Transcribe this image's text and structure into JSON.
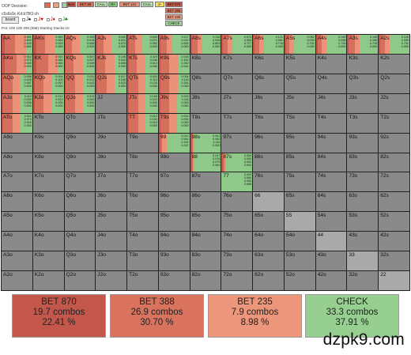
{
  "header": {
    "decision_label": "OOP Decision:",
    "board_cards": "c5s6s9c·Kd:b7BO:ch",
    "board_button_label": "board",
    "pot_info": "Pot: 100 100 200 (558) Starting Stacks:10",
    "suit_filters": [
      {
        "label": "J♠",
        "color": "#1a1a1a"
      },
      {
        "label": "J♥",
        "color": "#c00000"
      },
      {
        "label": "J♦",
        "color": "#c00000"
      },
      {
        "label": "J♣",
        "color": "#1a7a1a"
      }
    ],
    "legend_colors": [
      "#e06b4e",
      "#f0a080",
      "#9fd39a"
    ]
  },
  "action_tabs": [
    {
      "label": "Bext",
      "color": "#c8564a"
    },
    {
      "label": "BET 69",
      "color": "#d9735e"
    },
    {
      "label": "CALL",
      "color": "#b9e0b2"
    },
    {
      "label": "R+",
      "color": "#7fc878"
    },
    {
      "label": "BET 121",
      "color": "#e28f77"
    },
    {
      "label": "CALL",
      "color": "#b9e0b2"
    },
    {
      "label": "J+",
      "color": "#f2e060"
    },
    {
      "label": "BET 870",
      "color": "#c8564a"
    },
    {
      "label": "BET 388",
      "color": "#d9735e"
    },
    {
      "label": "BET 235",
      "color": "#eb9880"
    },
    {
      "label": "CHECK",
      "color": "#9fd39a"
    }
  ],
  "action_colors": {
    "bet_870": "#c4574b",
    "bet_388": "#d4705d",
    "bet_235": "#eb9278",
    "check": "#8fc98a"
  },
  "grid": {
    "ranks": [
      "A",
      "K",
      "Q",
      "J",
      "T",
      "9",
      "8",
      "7",
      "6",
      "5",
      "4",
      "3",
      "2"
    ],
    "strategies": {
      "AA": [
        0.1,
        0.35,
        0.35,
        0.2
      ],
      "AKs": [
        0.1,
        0.3,
        0.3,
        0.3
      ],
      "AQs": [
        0.05,
        0.2,
        0.25,
        0.5
      ],
      "AJs": [
        0.05,
        0.2,
        0.25,
        0.5
      ],
      "ATs": [
        0.05,
        0.2,
        0.25,
        0.5
      ],
      "A9s": [
        0.05,
        0.2,
        0.2,
        0.55
      ],
      "A8s": [
        0.05,
        0.2,
        0.15,
        0.6
      ],
      "A7s": [
        0.05,
        0.15,
        0.15,
        0.65
      ],
      "A6s": [
        0.05,
        0.15,
        0.15,
        0.65
      ],
      "A5s": [
        0.05,
        0.1,
        0.15,
        0.7
      ],
      "A4s": [
        0.05,
        0.15,
        0.15,
        0.65
      ],
      "A3s": [
        0.05,
        0.2,
        0.15,
        0.6
      ],
      "A2s": [
        0.05,
        0.15,
        0.15,
        0.65
      ],
      "AKo": [
        0.1,
        0.4,
        0.3,
        0.2
      ],
      "KK": [
        0.1,
        0.4,
        0.3,
        0.2
      ],
      "KQs": [
        0.05,
        0.25,
        0.3,
        0.4
      ],
      "KJs": [
        0.05,
        0.25,
        0.3,
        0.4
      ],
      "KTs": [
        0.05,
        0.25,
        0.3,
        0.4
      ],
      "K9s": [
        0.05,
        0.3,
        0.3,
        0.35
      ],
      "AQo": [
        0.05,
        0.3,
        0.25,
        0.4
      ],
      "KQo": [
        0.05,
        0.3,
        0.25,
        0.4
      ],
      "QQ": [
        0.05,
        0.3,
        0.25,
        0.4
      ],
      "QJs": [
        0.05,
        0.3,
        0.25,
        0.4
      ],
      "QTs": [
        0.05,
        0.3,
        0.25,
        0.4
      ],
      "Q9s": [
        0.05,
        0.3,
        0.3,
        0.35
      ],
      "AJo": [
        0.05,
        0.3,
        0.25,
        0.4
      ],
      "KJo": [
        0.05,
        0.3,
        0.25,
        0.4
      ],
      "QJo": [
        0.05,
        0.3,
        0.25,
        0.4
      ],
      "JTs": [
        0.05,
        0.3,
        0.25,
        0.4
      ],
      "J9s": [
        0.05,
        0.3,
        0.25,
        0.4
      ],
      "ATo": [
        0.05,
        0.3,
        0.25,
        0.4
      ],
      "TT": [
        0.05,
        0.3,
        0.25,
        0.4
      ],
      "T9s": [
        0.05,
        0.3,
        0.25,
        0.4
      ],
      "99": [
        0.05,
        0.05,
        0.15,
        0.75
      ],
      "98s": [
        0.05,
        0.05,
        0.05,
        0.85
      ],
      "88": [
        0.05,
        0.05,
        0.05,
        0.85
      ],
      "87s": [
        0.05,
        0.05,
        0.05,
        0.85
      ],
      "77": [
        0.0,
        0.0,
        0.0,
        1.0
      ]
    },
    "freq_labels": {
      "AA": [
        "0.951",
        "0.500",
        "0.100",
        "0.500"
      ],
      "AKs": [
        "0.950",
        "0.083",
        "0.003",
        "0.059"
      ],
      "AQs": [
        "0.105",
        "0.019",
        "0.066",
        "0.000"
      ],
      "AJs": [
        "0.042",
        "0.021",
        "0.074",
        "0.000"
      ],
      "ATs": [
        "0.049",
        "0.071",
        "0.062",
        "0.000"
      ],
      "A9s": [
        "0.117",
        "0.210",
        "0.694",
        "0.000"
      ],
      "A8s": [
        "0.115",
        "0.006",
        "0.803",
        "0.000"
      ],
      "A7s": [
        "0.074",
        "0.055",
        "0.727",
        "0.000"
      ],
      "A6s": [
        "0.121",
        "0.061",
        "0.718",
        "0.000"
      ],
      "A5s": [
        "0.062",
        "0.039",
        "0.700",
        "0.000"
      ],
      "A4s": [
        "0.140",
        "0.096",
        "0.716",
        "0.000"
      ],
      "A3s": [
        "0.135",
        "0.100",
        "0.728",
        "0.000"
      ],
      "A2s": [
        "0.135",
        "0.035",
        "0.731",
        "0.000"
      ],
      "AKo": [
        "0.910",
        "0.070",
        "0.020",
        "0.000"
      ],
      "KK": [
        "0.920",
        "0.080",
        "0.050",
        "0.000"
      ],
      "KQs": [
        "0.007",
        "0.047",
        "0.039",
        "0.000"
      ],
      "KJs": [
        "0.106",
        "0.042",
        "0.008",
        "0.000"
      ],
      "KTs": [
        "0.119",
        "0.046",
        "0.014",
        "0.000"
      ],
      "K9s": [
        "0.018",
        "0.162",
        "0.262",
        "0.041"
      ],
      "AQo": [
        "0.096",
        "0.026",
        "0.067",
        "0.000"
      ],
      "KQo": [
        "0.004",
        "0.100",
        "0.097",
        "0.000"
      ],
      "QQ": [
        "0.011",
        "0.012",
        "0.042",
        "0.000"
      ],
      "QJs": [
        "0.017",
        "0.045",
        "0.023",
        "0.000"
      ],
      "QTs": [
        "0.003",
        "0.110",
        "0.130",
        "0.000"
      ],
      "Q9s": [
        "0.054",
        "0.118",
        "0.261",
        "0.000"
      ],
      "AJo": [
        "0.110",
        "0.020",
        "0.008",
        "0.000"
      ],
      "KJo": [
        "0.012",
        "0.022",
        "0.030",
        "0.000"
      ],
      "QJo": [
        "0.012",
        "0.000",
        "0.000",
        "0.000"
      ],
      "JTs": [
        "0.150",
        "0.024",
        "0.005",
        "0.000"
      ],
      "J9s": [
        "0.023",
        "0.118",
        "0.009",
        "0.000"
      ],
      "ATo": [
        "0.011",
        "0.074",
        "0.016",
        "0.000"
      ],
      "TT": [
        "0.012",
        "0.100",
        "0.015",
        "0.000"
      ],
      "T9s": [
        "0.015",
        "0.091",
        "0.000",
        "0.000"
      ],
      "99": [
        "0.012",
        "0.061",
        "0.191",
        "0.167"
      ],
      "98s": [
        "0.001",
        "0.062",
        "0.110",
        "0.000"
      ],
      "88": [
        "0.047",
        "0.076",
        "0.079",
        "0.061"
      ],
      "87s": [
        "0.000",
        "0.000",
        "0.000",
        "0.000"
      ],
      "77": [
        "0.000",
        "0.060",
        "0.000",
        "0.898"
      ]
    },
    "light_cells": [
      "AJo",
      "66",
      "55",
      "44",
      "33",
      "22"
    ]
  },
  "summary": [
    {
      "label": "BET 870",
      "combos": "19.7 combos",
      "percent": "22.41 %",
      "color": "#c4574b"
    },
    {
      "label": "BET 388",
      "combos": "26.9 combos",
      "percent": "30.70 %",
      "color": "#d9735e"
    },
    {
      "label": "BET 235",
      "combos": "7.9 combos",
      "percent": "8.98 %",
      "color": "#ec967c"
    },
    {
      "label": "CHECK",
      "combos": "33.3 combos",
      "percent": "37.91 %",
      "color": "#96cf90"
    }
  ],
  "watermark": "dzpk9.com"
}
